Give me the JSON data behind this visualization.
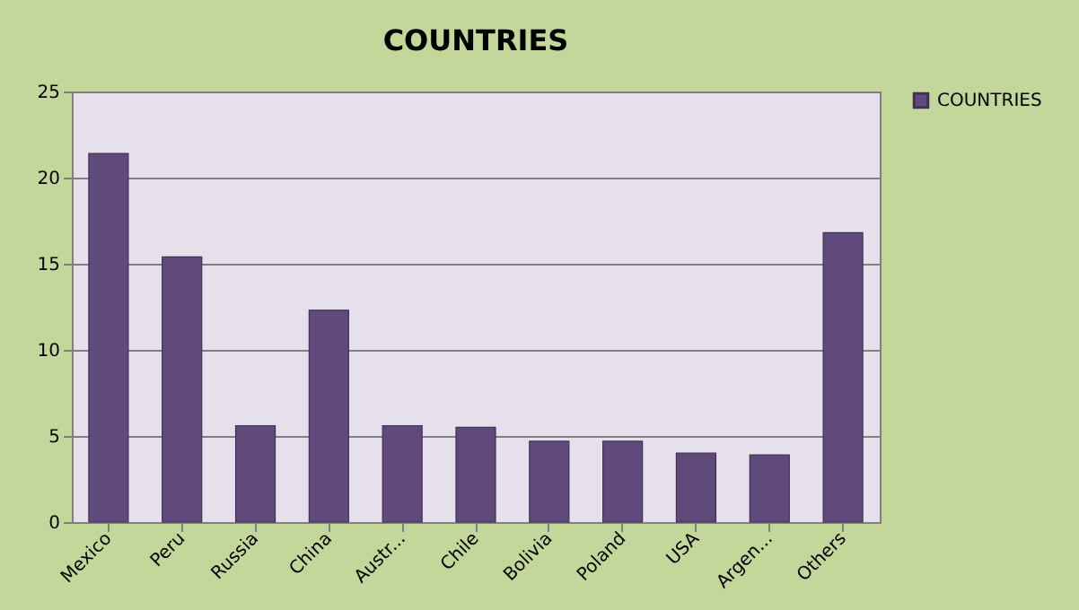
{
  "chart_data": {
    "type": "bar",
    "title": "COUNTRIES",
    "categories": [
      "Mexico",
      "Peru",
      "Russia",
      "China",
      "Austr...",
      "Chile",
      "Bolivia",
      "Poland",
      "USA",
      "Argen...",
      "Others"
    ],
    "series": [
      {
        "name": "COUNTRIES",
        "color": "#604a7b",
        "values": [
          21.4,
          15.4,
          5.6,
          12.3,
          5.6,
          5.5,
          4.7,
          4.7,
          4.0,
          3.9,
          16.8
        ]
      }
    ],
    "ylim": [
      0,
      25
    ],
    "yticks": [
      0,
      5,
      10,
      15,
      20,
      25
    ],
    "grid": "y",
    "legend": "right"
  }
}
